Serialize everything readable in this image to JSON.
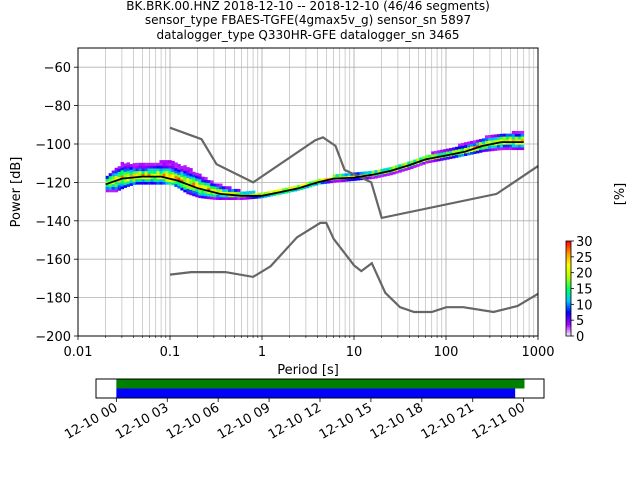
{
  "chart_data": [
    {
      "type": "heatmap",
      "title_lines": [
        "BK.BRK.00.HNZ   2018-12-10 -- 2018-12-10  (46/46 segments)",
        "sensor_type FBAES-TGFE(4gmax5v_g) sensor_sn 5897",
        "datalogger_type Q330HR-GFE datalogger_sn 3465"
      ],
      "xlabel": "Period [s]",
      "ylabel": "Power [dB]",
      "x_scale": "log",
      "xlim": [
        0.01,
        1000
      ],
      "ylim": [
        -200,
        -50
      ],
      "x_ticks": [
        0.01,
        0.1,
        1,
        10,
        100,
        1000
      ],
      "x_tick_labels": [
        "0.01",
        "0.1",
        "1",
        "10",
        "100",
        "1000"
      ],
      "y_ticks": [
        -60,
        -80,
        -100,
        -120,
        -140,
        -160,
        -180,
        -200
      ],
      "y_tick_labels": [
        "−60",
        "−80",
        "−100",
        "−120",
        "−140",
        "−160",
        "−180",
        "−200"
      ],
      "grid": true,
      "noise_model_high": [
        [
          0.1,
          -91.5
        ],
        [
          0.22,
          -97.5
        ],
        [
          0.32,
          -110.5
        ],
        [
          0.8,
          -120
        ],
        [
          3.8,
          -98
        ],
        [
          4.6,
          -96.5
        ],
        [
          6.3,
          -101
        ],
        [
          7.9,
          -113.5
        ],
        [
          15.4,
          -120
        ],
        [
          20,
          -138.5
        ],
        [
          354.8,
          -126
        ],
        [
          1000,
          -111.5
        ]
      ],
      "noise_model_low": [
        [
          0.1,
          -168
        ],
        [
          0.17,
          -166.7
        ],
        [
          0.4,
          -166.7
        ],
        [
          0.8,
          -169.2
        ],
        [
          1.24,
          -163.7
        ],
        [
          2.4,
          -148.6
        ],
        [
          4.3,
          -141.1
        ],
        [
          5,
          -141.1
        ],
        [
          6,
          -149.4
        ],
        [
          10,
          -163.2
        ],
        [
          12,
          -166.2
        ],
        [
          15.6,
          -162.1
        ],
        [
          21.9,
          -177.5
        ],
        [
          31.6,
          -185
        ],
        [
          45,
          -187.5
        ],
        [
          70,
          -187.5
        ],
        [
          101,
          -185
        ],
        [
          154,
          -185
        ],
        [
          328,
          -187.5
        ],
        [
          600,
          -184.4
        ],
        [
          1000,
          -178
        ]
      ],
      "mean_psd": [
        [
          0.02,
          -121
        ],
        [
          0.03,
          -118
        ],
        [
          0.05,
          -117
        ],
        [
          0.08,
          -117
        ],
        [
          0.12,
          -119
        ],
        [
          0.2,
          -123
        ],
        [
          0.35,
          -126
        ],
        [
          0.6,
          -127
        ],
        [
          1,
          -127
        ],
        [
          1.6,
          -125
        ],
        [
          2.5,
          -123
        ],
        [
          4,
          -120
        ],
        [
          6,
          -118
        ],
        [
          10,
          -117.5
        ],
        [
          16,
          -116
        ],
        [
          25,
          -114
        ],
        [
          40,
          -111
        ],
        [
          60,
          -108
        ],
        [
          100,
          -106
        ],
        [
          160,
          -104
        ],
        [
          250,
          -101
        ],
        [
          400,
          -99
        ],
        [
          700,
          -99
        ]
      ],
      "psd_envelope": {
        "periods": [
          0.02,
          0.025,
          0.03,
          0.04,
          0.05,
          0.07,
          0.1,
          0.12,
          0.15,
          0.2,
          0.3,
          0.4,
          0.6,
          1,
          1.6,
          2.5,
          4,
          6,
          10,
          16,
          25,
          40,
          60,
          100,
          160,
          250,
          400,
          700
        ],
        "upper": [
          -117,
          -113,
          -110,
          -111,
          -111,
          -110,
          -109,
          -111,
          -113,
          -116,
          -121,
          -123,
          -125,
          -126,
          -124,
          -122,
          -119,
          -117,
          -116,
          -115,
          -113,
          -110,
          -106,
          -103,
          -100,
          -97,
          -95,
          -94
        ],
        "lower": [
          -125,
          -125,
          -123,
          -121,
          -121,
          -121,
          -121,
          -123,
          -126,
          -128,
          -129,
          -129,
          -129,
          -128,
          -126,
          -124,
          -121,
          -120,
          -119,
          -118,
          -116,
          -113,
          -110,
          -108,
          -106,
          -104,
          -103,
          -103
        ]
      },
      "colorbar": {
        "label": "[%]",
        "range": [
          0,
          30
        ],
        "ticks": [
          0,
          5,
          10,
          15,
          20,
          25,
          30
        ],
        "colormap": [
          "#ffffff",
          "#aa00ff",
          "#0000ff",
          "#00c8ff",
          "#00ff60",
          "#b4ff00",
          "#ffff00",
          "#ff9600",
          "#ff0000"
        ]
      },
      "colors": {
        "noise_model": "#666666",
        "mean": "#000000",
        "grid": "#b0b0b0"
      }
    },
    {
      "type": "timeline",
      "x_tick_labels": [
        "12-10 00",
        "12-10 03",
        "12-10 06",
        "12-10 09",
        "12-10 12",
        "12-10 15",
        "12-10 18",
        "12-10 21",
        "12-11 00"
      ],
      "x_ticks_hours": [
        0,
        3,
        6,
        9,
        12,
        15,
        18,
        21,
        24
      ],
      "xlim_hours": [
        -1.2,
        25.2
      ],
      "bars": [
        {
          "start_hour": 0,
          "end_hour": 24.05,
          "color": "#008000"
        },
        {
          "start_hour": 0,
          "end_hour": 23.5,
          "color": "#0000ff"
        }
      ]
    }
  ]
}
